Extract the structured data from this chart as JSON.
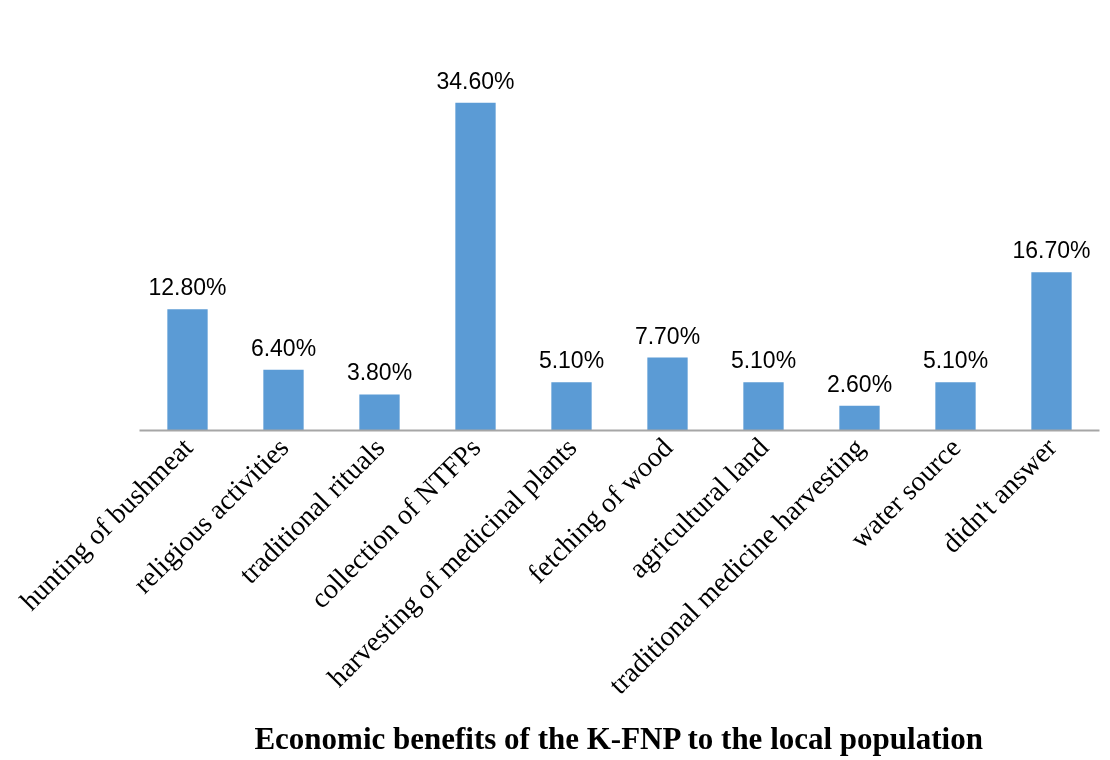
{
  "chart_data": {
    "type": "bar",
    "title": "Economic benefits of the K-FNP to the local population",
    "categories": [
      "hunting of bushmeat",
      "religious activities",
      "traditional rituals",
      "collection of NTFPs",
      "harvesting of medicinal plants",
      "fetching of wood",
      "agricultural land",
      "traditional medicine harvesting",
      "water source",
      "didn't answer"
    ],
    "values": [
      12.8,
      6.4,
      3.8,
      34.6,
      5.1,
      7.7,
      5.1,
      2.6,
      5.1,
      16.7
    ],
    "value_labels": [
      "12.80%",
      "6.40%",
      "3.80%",
      "34.60%",
      "5.10%",
      "7.70%",
      "5.10%",
      "2.60%",
      "5.10%",
      "16.70%"
    ],
    "color": "#5b9bd5",
    "grid": false
  }
}
